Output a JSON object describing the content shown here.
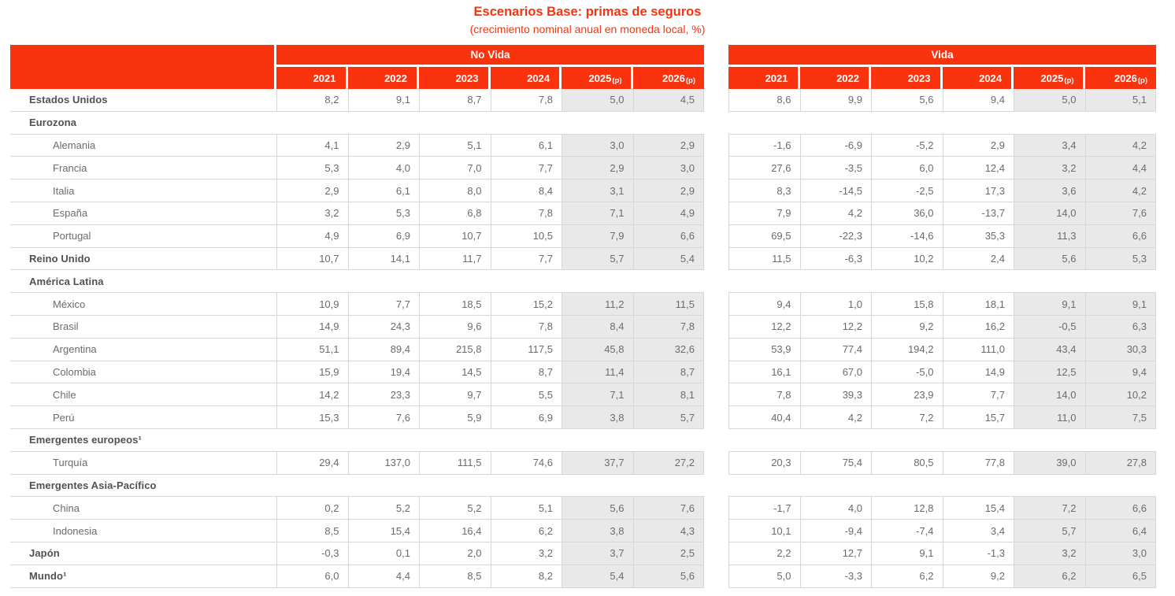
{
  "colors": {
    "accent": "#f8330e",
    "shaded": "#e9e9e9",
    "border": "#d7d7d7",
    "label_strong": "#505153",
    "label_text": "#6a6b6e",
    "value_text": "#6a6b6e"
  },
  "chart_data": {
    "type": "table",
    "title": "Escenarios Base: primas de seguros",
    "subtitle": "(crecimiento nominal anual en moneda local, %)",
    "column_groups": [
      {
        "key": "novida",
        "label": "No Vida"
      },
      {
        "key": "vida",
        "label": "Vida"
      }
    ],
    "year_columns": [
      {
        "label": "2021",
        "suffix": ""
      },
      {
        "label": "2022",
        "suffix": ""
      },
      {
        "label": "2023",
        "suffix": ""
      },
      {
        "label": "2024",
        "suffix": ""
      },
      {
        "label": "2025",
        "suffix": "(p)"
      },
      {
        "label": "2026",
        "suffix": "(p)"
      }
    ],
    "rows": [
      {
        "label": "Estados Unidos",
        "level": 0,
        "section": false,
        "novida": [
          "8,2",
          "9,1",
          "8,7",
          "7,8",
          "5,0",
          "4,5"
        ],
        "vida": [
          "8,6",
          "9,9",
          "5,6",
          "9,4",
          "5,0",
          "5,1"
        ]
      },
      {
        "label": "Eurozona",
        "level": 0,
        "section": true
      },
      {
        "label": "Alemania",
        "level": 1,
        "section": false,
        "novida": [
          "4,1",
          "2,9",
          "5,1",
          "6,1",
          "3,0",
          "2,9"
        ],
        "vida": [
          "-1,6",
          "-6,9",
          "-5,2",
          "2,9",
          "3,4",
          "4,2"
        ]
      },
      {
        "label": "Francia",
        "level": 1,
        "section": false,
        "novida": [
          "5,3",
          "4,0",
          "7,0",
          "7,7",
          "2,9",
          "3,0"
        ],
        "vida": [
          "27,6",
          "-3,5",
          "6,0",
          "12,4",
          "3,2",
          "4,4"
        ]
      },
      {
        "label": "Italia",
        "level": 1,
        "section": false,
        "novida": [
          "2,9",
          "6,1",
          "8,0",
          "8,4",
          "3,1",
          "2,9"
        ],
        "vida": [
          "8,3",
          "-14,5",
          "-2,5",
          "17,3",
          "3,6",
          "4,2"
        ]
      },
      {
        "label": "España",
        "level": 1,
        "section": false,
        "novida": [
          "3,2",
          "5,3",
          "6,8",
          "7,8",
          "7,1",
          "4,9"
        ],
        "vida": [
          "7,9",
          "4,2",
          "36,0",
          "-13,7",
          "14,0",
          "7,6"
        ]
      },
      {
        "label": "Portugal",
        "level": 1,
        "section": false,
        "novida": [
          "4,9",
          "6,9",
          "10,7",
          "10,5",
          "7,9",
          "6,6"
        ],
        "vida": [
          "69,5",
          "-22,3",
          "-14,6",
          "35,3",
          "11,3",
          "6,6"
        ]
      },
      {
        "label": "Reino Unido",
        "level": 0,
        "section": false,
        "novida": [
          "10,7",
          "14,1",
          "11,7",
          "7,7",
          "5,7",
          "5,4"
        ],
        "vida": [
          "11,5",
          "-6,3",
          "10,2",
          "2,4",
          "5,6",
          "5,3"
        ]
      },
      {
        "label": "América Latina",
        "level": 0,
        "section": true
      },
      {
        "label": "México",
        "level": 1,
        "section": false,
        "novida": [
          "10,9",
          "7,7",
          "18,5",
          "15,2",
          "11,2",
          "11,5"
        ],
        "vida": [
          "9,4",
          "1,0",
          "15,8",
          "18,1",
          "9,1",
          "9,1"
        ]
      },
      {
        "label": "Brasil",
        "level": 1,
        "section": false,
        "novida": [
          "14,9",
          "24,3",
          "9,6",
          "7,8",
          "8,4",
          "7,8"
        ],
        "vida": [
          "12,2",
          "12,2",
          "9,2",
          "16,2",
          "-0,5",
          "6,3"
        ]
      },
      {
        "label": "Argentina",
        "level": 1,
        "section": false,
        "novida": [
          "51,1",
          "89,4",
          "215,8",
          "117,5",
          "45,8",
          "32,6"
        ],
        "vida": [
          "53,9",
          "77,4",
          "194,2",
          "111,0",
          "43,4",
          "30,3"
        ]
      },
      {
        "label": "Colombia",
        "level": 1,
        "section": false,
        "novida": [
          "15,9",
          "19,4",
          "14,5",
          "8,7",
          "11,4",
          "8,7"
        ],
        "vida": [
          "16,1",
          "67,0",
          "-5,0",
          "14,9",
          "12,5",
          "9,4"
        ]
      },
      {
        "label": "Chile",
        "level": 1,
        "section": false,
        "novida": [
          "14,2",
          "23,3",
          "9,7",
          "5,5",
          "7,1",
          "8,1"
        ],
        "vida": [
          "7,8",
          "39,3",
          "23,9",
          "7,7",
          "14,0",
          "10,2"
        ]
      },
      {
        "label": "Perú",
        "level": 1,
        "section": false,
        "novida": [
          "15,3",
          "7,6",
          "5,9",
          "6,9",
          "3,8",
          "5,7"
        ],
        "vida": [
          "40,4",
          "4,2",
          "7,2",
          "15,7",
          "11,0",
          "7,5"
        ]
      },
      {
        "label": "Emergentes europeos¹",
        "level": 0,
        "section": true
      },
      {
        "label": "Turquía",
        "level": 1,
        "section": false,
        "novida": [
          "29,4",
          "137,0",
          "111,5",
          "74,6",
          "37,7",
          "27,2"
        ],
        "vida": [
          "20,3",
          "75,4",
          "80,5",
          "77,8",
          "39,0",
          "27,8"
        ]
      },
      {
        "label": "Emergentes Asia-Pacífico",
        "level": 0,
        "section": true
      },
      {
        "label": "China",
        "level": 1,
        "section": false,
        "novida": [
          "0,2",
          "5,2",
          "5,2",
          "5,1",
          "5,6",
          "7,6"
        ],
        "vida": [
          "-1,7",
          "4,0",
          "12,8",
          "15,4",
          "7,2",
          "6,6"
        ]
      },
      {
        "label": "Indonesia",
        "level": 1,
        "section": false,
        "novida": [
          "8,5",
          "15,4",
          "16,4",
          "6,2",
          "3,8",
          "4,3"
        ],
        "vida": [
          "10,1",
          "-9,4",
          "-7,4",
          "3,4",
          "5,7",
          "6,4"
        ]
      },
      {
        "label": "Japón",
        "level": 0,
        "section": false,
        "novida": [
          "-0,3",
          "0,1",
          "2,0",
          "3,2",
          "3,7",
          "2,5"
        ],
        "vida": [
          "2,2",
          "12,7",
          "9,1",
          "-1,3",
          "3,2",
          "3,0"
        ]
      },
      {
        "label": "Mundo¹",
        "level": 0,
        "section": false,
        "novida": [
          "6,0",
          "4,4",
          "8,5",
          "8,2",
          "5,4",
          "5,6"
        ],
        "vida": [
          "5,0",
          "-3,3",
          "6,2",
          "9,2",
          "6,2",
          "6,5"
        ]
      }
    ]
  }
}
